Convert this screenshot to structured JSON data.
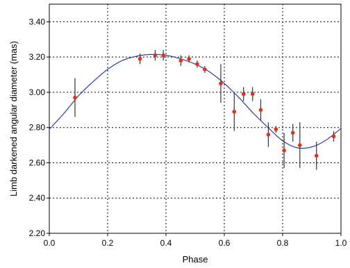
{
  "chart_data": {
    "type": "scatter",
    "title": "",
    "xlabel": "Phase",
    "ylabel": "Limb darkened angular diameter (mas)",
    "xlim": [
      0.0,
      1.0
    ],
    "ylim": [
      2.2,
      3.5
    ],
    "x_ticks": [
      0.0,
      0.2,
      0.4,
      0.6,
      0.8,
      1.0
    ],
    "x_tick_labels": [
      "0.0",
      "0.2",
      "0.4",
      "0.6",
      "0.8",
      "1.0"
    ],
    "y_ticks": [
      2.2,
      2.4,
      2.6,
      2.8,
      3.0,
      3.2,
      3.4
    ],
    "y_tick_labels": [
      "2.20",
      "2.40",
      "2.60",
      "2.80",
      "3.00",
      "3.20",
      "3.40"
    ],
    "grid": true,
    "grid_style": "dotted",
    "series": [
      {
        "kind": "points_with_error_bars",
        "color": "#e0301e",
        "error_bar_color": "#333333",
        "points": [
          {
            "x": 0.088,
            "y": 2.97,
            "err": 0.11
          },
          {
            "x": 0.311,
            "y": 3.19,
            "err": 0.03
          },
          {
            "x": 0.363,
            "y": 3.21,
            "err": 0.03
          },
          {
            "x": 0.391,
            "y": 3.21,
            "err": 0.03
          },
          {
            "x": 0.451,
            "y": 3.18,
            "err": 0.03
          },
          {
            "x": 0.479,
            "y": 3.19,
            "err": 0.02
          },
          {
            "x": 0.507,
            "y": 3.16,
            "err": 0.02
          },
          {
            "x": 0.533,
            "y": 3.13,
            "err": 0.02
          },
          {
            "x": 0.588,
            "y": 3.05,
            "err": 0.11
          },
          {
            "x": 0.634,
            "y": 2.89,
            "err": 0.11
          },
          {
            "x": 0.666,
            "y": 2.99,
            "err": 0.04
          },
          {
            "x": 0.697,
            "y": 2.99,
            "err": 0.04
          },
          {
            "x": 0.725,
            "y": 2.9,
            "err": 0.06
          },
          {
            "x": 0.751,
            "y": 2.76,
            "err": 0.07
          },
          {
            "x": 0.777,
            "y": 2.79,
            "err": 0.02
          },
          {
            "x": 0.805,
            "y": 2.67,
            "err": 0.1
          },
          {
            "x": 0.835,
            "y": 2.77,
            "err": 0.05
          },
          {
            "x": 0.859,
            "y": 2.7,
            "err": 0.13
          },
          {
            "x": 0.916,
            "y": 2.64,
            "err": 0.08
          },
          {
            "x": 0.975,
            "y": 2.75,
            "err": 0.03
          }
        ]
      },
      {
        "kind": "model_curve",
        "color": "#2a3f9e",
        "x": [
          0.0,
          0.05,
          0.1,
          0.15,
          0.2,
          0.25,
          0.3,
          0.35,
          0.4,
          0.45,
          0.5,
          0.55,
          0.6,
          0.65,
          0.7,
          0.75,
          0.8,
          0.85,
          0.9,
          0.95,
          1.0
        ],
        "y": [
          2.79,
          2.88,
          2.98,
          3.06,
          3.13,
          3.18,
          3.205,
          3.215,
          3.21,
          3.19,
          3.16,
          3.115,
          3.05,
          2.97,
          2.88,
          2.8,
          2.725,
          2.685,
          2.69,
          2.73,
          2.795
        ]
      }
    ]
  }
}
